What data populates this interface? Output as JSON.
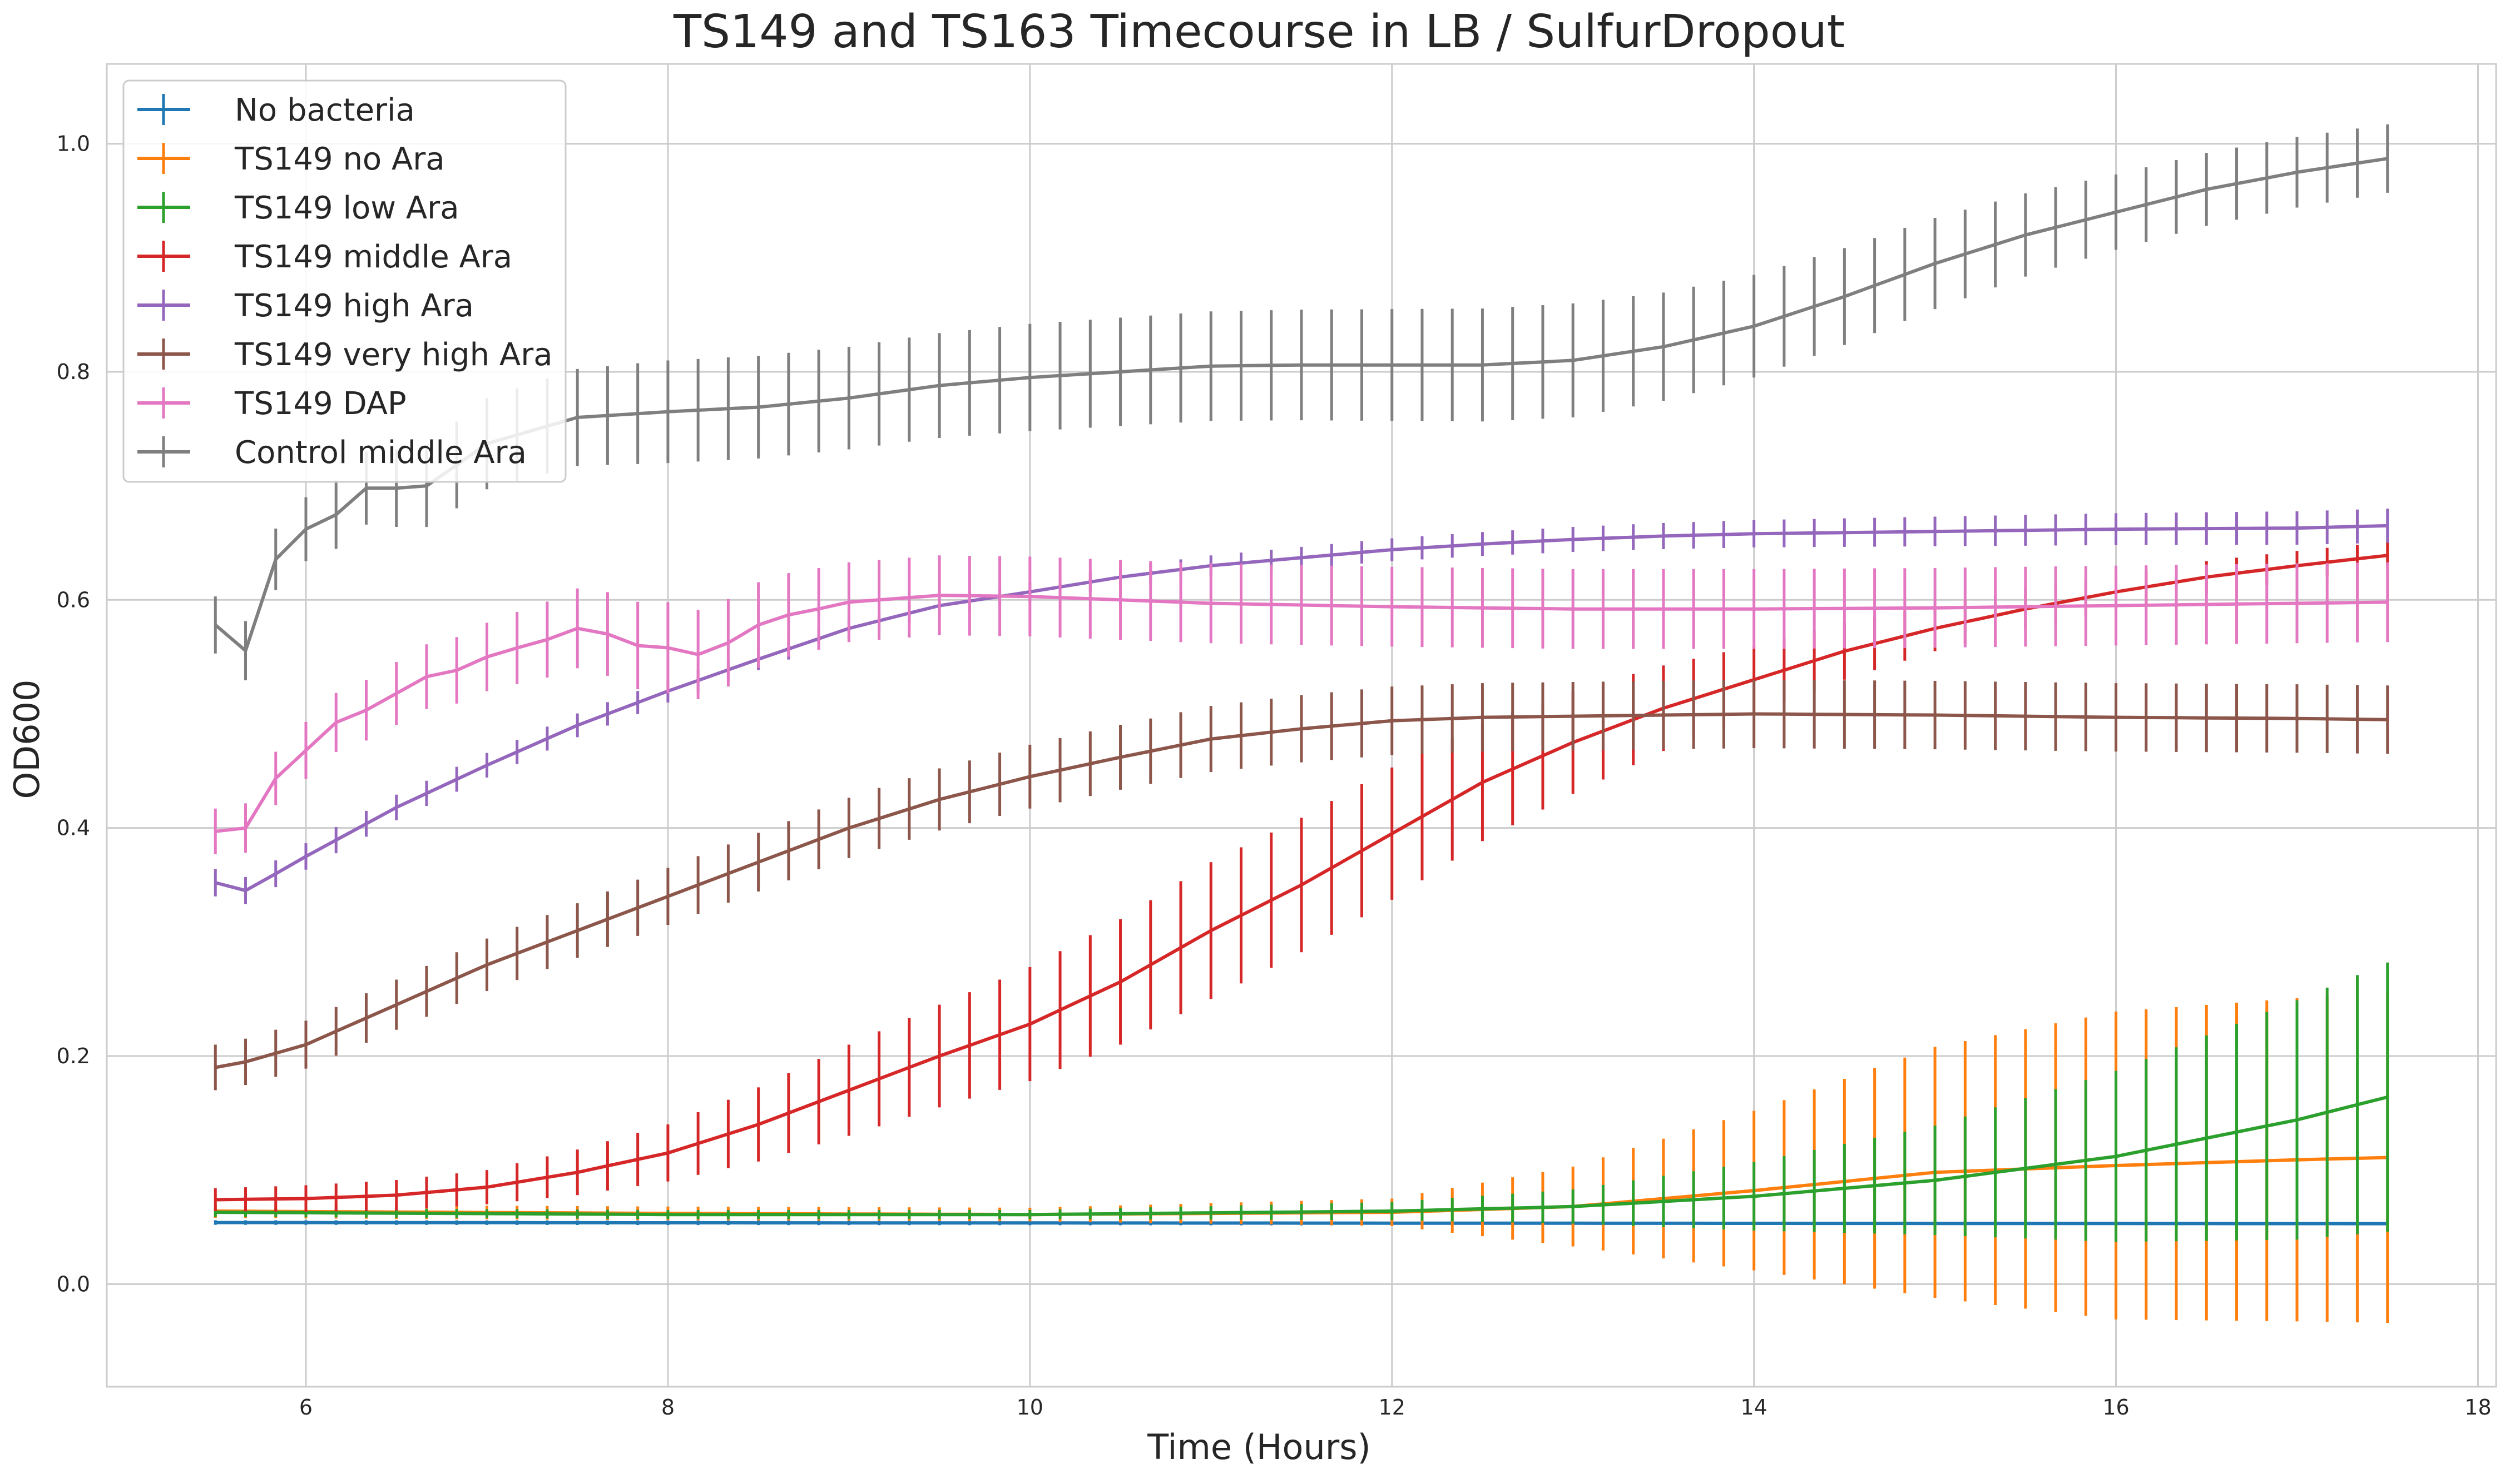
{
  "chart_data": {
    "type": "line",
    "title": "TS149 and TS163 Timecourse in LB / SulfurDropout",
    "xlabel": "Time (Hours)",
    "ylabel": "OD600",
    "xlim": [
      4.9,
      18.1
    ],
    "ylim": [
      -0.09,
      1.07
    ],
    "xticks": [
      6,
      8,
      10,
      12,
      14,
      16,
      18
    ],
    "xtick_labels": [
      "6",
      "8",
      "10",
      "12",
      "14",
      "16",
      "18"
    ],
    "yticks": [
      0.0,
      0.2,
      0.4,
      0.6,
      0.8,
      1.0
    ],
    "ytick_labels": [
      "0.0",
      "0.2",
      "0.4",
      "0.6",
      "0.8",
      "1.0"
    ],
    "grid": true,
    "error_bars": true,
    "legend_position": "top-left",
    "x": {
      "start": 5.5,
      "end": 17.5,
      "count": 73
    },
    "series": [
      {
        "name": "No bacteria",
        "color": "#1f77b4",
        "points": [
          [
            5.5,
            0.054
          ],
          [
            17.5,
            0.053
          ]
        ],
        "err": [
          [
            5.5,
            0.002
          ],
          [
            17.5,
            0.002
          ]
        ]
      },
      {
        "name": "TS149 no Ara",
        "color": "#ff7f0e",
        "points": [
          [
            5.5,
            0.064
          ],
          [
            8,
            0.062
          ],
          [
            10,
            0.061
          ],
          [
            12,
            0.063
          ],
          [
            13,
            0.068
          ],
          [
            14,
            0.082
          ],
          [
            15,
            0.098
          ],
          [
            16,
            0.104
          ],
          [
            17,
            0.109
          ],
          [
            17.5,
            0.111
          ]
        ],
        "err": [
          [
            5.5,
            0.006
          ],
          [
            10,
            0.006
          ],
          [
            12,
            0.012
          ],
          [
            13,
            0.035
          ],
          [
            14,
            0.07
          ],
          [
            15,
            0.11
          ],
          [
            16,
            0.135
          ],
          [
            17.5,
            0.145
          ]
        ]
      },
      {
        "name": "TS149 low Ara",
        "color": "#2ca02c",
        "points": [
          [
            5.5,
            0.063
          ],
          [
            8,
            0.061
          ],
          [
            10,
            0.061
          ],
          [
            12,
            0.064
          ],
          [
            13,
            0.068
          ],
          [
            14,
            0.077
          ],
          [
            15,
            0.091
          ],
          [
            16,
            0.112
          ],
          [
            17,
            0.144
          ],
          [
            17.5,
            0.164
          ]
        ],
        "err": [
          [
            5.5,
            0.004
          ],
          [
            10,
            0.004
          ],
          [
            12,
            0.008
          ],
          [
            13,
            0.015
          ],
          [
            14,
            0.03
          ],
          [
            15,
            0.048
          ],
          [
            16,
            0.075
          ],
          [
            17,
            0.105
          ],
          [
            17.5,
            0.118
          ]
        ]
      },
      {
        "name": "TS149 middle Ara",
        "color": "#d62728",
        "points": [
          [
            5.5,
            0.074
          ],
          [
            6,
            0.075
          ],
          [
            6.5,
            0.078
          ],
          [
            7,
            0.085
          ],
          [
            7.5,
            0.098
          ],
          [
            8,
            0.115
          ],
          [
            8.5,
            0.14
          ],
          [
            9,
            0.17
          ],
          [
            9.5,
            0.2
          ],
          [
            10,
            0.228
          ],
          [
            10.5,
            0.265
          ],
          [
            11,
            0.31
          ],
          [
            11.5,
            0.35
          ],
          [
            12,
            0.395
          ],
          [
            12.5,
            0.44
          ],
          [
            13,
            0.475
          ],
          [
            13.5,
            0.505
          ],
          [
            14,
            0.53
          ],
          [
            14.5,
            0.555
          ],
          [
            15,
            0.575
          ],
          [
            15.5,
            0.592
          ],
          [
            16,
            0.607
          ],
          [
            16.5,
            0.62
          ],
          [
            17,
            0.63
          ],
          [
            17.5,
            0.639
          ]
        ],
        "err": [
          [
            5.5,
            0.01
          ],
          [
            7,
            0.015
          ],
          [
            8,
            0.025
          ],
          [
            9,
            0.04
          ],
          [
            10,
            0.05
          ],
          [
            11,
            0.06
          ],
          [
            12,
            0.058
          ],
          [
            13,
            0.045
          ],
          [
            14,
            0.03
          ],
          [
            15,
            0.02
          ],
          [
            16,
            0.015
          ],
          [
            17.5,
            0.012
          ]
        ]
      },
      {
        "name": "TS149 high Ara",
        "color": "#9467bd",
        "points": [
          [
            5.5,
            0.352
          ],
          [
            5.67,
            0.345
          ],
          [
            6,
            0.375
          ],
          [
            6.5,
            0.418
          ],
          [
            7,
            0.455
          ],
          [
            7.5,
            0.49
          ],
          [
            8,
            0.52
          ],
          [
            8.5,
            0.548
          ],
          [
            9,
            0.575
          ],
          [
            9.5,
            0.595
          ],
          [
            10,
            0.607
          ],
          [
            10.5,
            0.62
          ],
          [
            11,
            0.63
          ],
          [
            11.5,
            0.637
          ],
          [
            12,
            0.644
          ],
          [
            12.5,
            0.649
          ],
          [
            13,
            0.653
          ],
          [
            13.5,
            0.656
          ],
          [
            14,
            0.658
          ],
          [
            15,
            0.66
          ],
          [
            16,
            0.662
          ],
          [
            17,
            0.663
          ],
          [
            17.5,
            0.665
          ]
        ],
        "err": [
          [
            5.5,
            0.012
          ],
          [
            8,
            0.01
          ],
          [
            10,
            0.008
          ],
          [
            12,
            0.01
          ],
          [
            14,
            0.012
          ],
          [
            16,
            0.014
          ],
          [
            17.5,
            0.015
          ]
        ]
      },
      {
        "name": "TS149 very high Ara",
        "color": "#8c564b",
        "points": [
          [
            5.5,
            0.19
          ],
          [
            5.67,
            0.195
          ],
          [
            6,
            0.21
          ],
          [
            6.5,
            0.245
          ],
          [
            7,
            0.28
          ],
          [
            7.5,
            0.31
          ],
          [
            8,
            0.34
          ],
          [
            8.5,
            0.37
          ],
          [
            9,
            0.4
          ],
          [
            9.5,
            0.425
          ],
          [
            10,
            0.445
          ],
          [
            10.5,
            0.462
          ],
          [
            11,
            0.478
          ],
          [
            11.5,
            0.487
          ],
          [
            12,
            0.494
          ],
          [
            12.5,
            0.497
          ],
          [
            13,
            0.498
          ],
          [
            14,
            0.5
          ],
          [
            15,
            0.499
          ],
          [
            16,
            0.497
          ],
          [
            17,
            0.496
          ],
          [
            17.5,
            0.495
          ]
        ],
        "err": [
          [
            5.5,
            0.02
          ],
          [
            8,
            0.025
          ],
          [
            10,
            0.028
          ],
          [
            12,
            0.03
          ],
          [
            14,
            0.03
          ],
          [
            16,
            0.03
          ],
          [
            17.5,
            0.03
          ]
        ]
      },
      {
        "name": "TS149 DAP",
        "color": "#e377c2",
        "points": [
          [
            5.5,
            0.397
          ],
          [
            5.67,
            0.4
          ],
          [
            5.83,
            0.443
          ],
          [
            6,
            0.468
          ],
          [
            6.17,
            0.493
          ],
          [
            6.33,
            0.503
          ],
          [
            6.5,
            0.518
          ],
          [
            6.67,
            0.533
          ],
          [
            6.83,
            0.538
          ],
          [
            7,
            0.55
          ],
          [
            7.17,
            0.558
          ],
          [
            7.33,
            0.565
          ],
          [
            7.5,
            0.575
          ],
          [
            7.67,
            0.57
          ],
          [
            7.83,
            0.56
          ],
          [
            8,
            0.558
          ],
          [
            8.17,
            0.552
          ],
          [
            8.33,
            0.562
          ],
          [
            8.5,
            0.578
          ],
          [
            8.67,
            0.587
          ],
          [
            8.83,
            0.592
          ],
          [
            9,
            0.598
          ],
          [
            9.5,
            0.604
          ],
          [
            10,
            0.603
          ],
          [
            10.5,
            0.6
          ],
          [
            11,
            0.597
          ],
          [
            12,
            0.594
          ],
          [
            13,
            0.592
          ],
          [
            14,
            0.592
          ],
          [
            15,
            0.593
          ],
          [
            16,
            0.595
          ],
          [
            17,
            0.597
          ],
          [
            17.5,
            0.598
          ]
        ],
        "err": [
          [
            5.5,
            0.02
          ],
          [
            6,
            0.025
          ],
          [
            7,
            0.03
          ],
          [
            8,
            0.04
          ],
          [
            9,
            0.035
          ],
          [
            10,
            0.035
          ],
          [
            12,
            0.035
          ],
          [
            14,
            0.035
          ],
          [
            16,
            0.035
          ],
          [
            17.5,
            0.035
          ]
        ]
      },
      {
        "name": "Control middle Ara",
        "color": "#7f7f7f",
        "points": [
          [
            5.5,
            0.578
          ],
          [
            5.67,
            0.555
          ],
          [
            5.83,
            0.635
          ],
          [
            6,
            0.662
          ],
          [
            6.17,
            0.675
          ],
          [
            6.33,
            0.698
          ],
          [
            6.5,
            0.698
          ],
          [
            6.67,
            0.7
          ],
          [
            7,
            0.737
          ],
          [
            7.5,
            0.76
          ],
          [
            8,
            0.765
          ],
          [
            8.5,
            0.769
          ],
          [
            9,
            0.777
          ],
          [
            9.5,
            0.788
          ],
          [
            10,
            0.795
          ],
          [
            10.5,
            0.8
          ],
          [
            11,
            0.805
          ],
          [
            11.5,
            0.806
          ],
          [
            12,
            0.806
          ],
          [
            12.5,
            0.806
          ],
          [
            13,
            0.81
          ],
          [
            13.5,
            0.822
          ],
          [
            14,
            0.84
          ],
          [
            14.5,
            0.866
          ],
          [
            15,
            0.895
          ],
          [
            15.5,
            0.92
          ],
          [
            16,
            0.94
          ],
          [
            16.5,
            0.96
          ],
          [
            17,
            0.975
          ],
          [
            17.5,
            0.987
          ]
        ],
        "err": [
          [
            5.5,
            0.025
          ],
          [
            6,
            0.028
          ],
          [
            7,
            0.04
          ],
          [
            8,
            0.045
          ],
          [
            9,
            0.045
          ],
          [
            10,
            0.047
          ],
          [
            11,
            0.048
          ],
          [
            12,
            0.049
          ],
          [
            13,
            0.05
          ],
          [
            14,
            0.045
          ],
          [
            15,
            0.04
          ],
          [
            16,
            0.033
          ],
          [
            17.5,
            0.03
          ]
        ]
      }
    ]
  }
}
